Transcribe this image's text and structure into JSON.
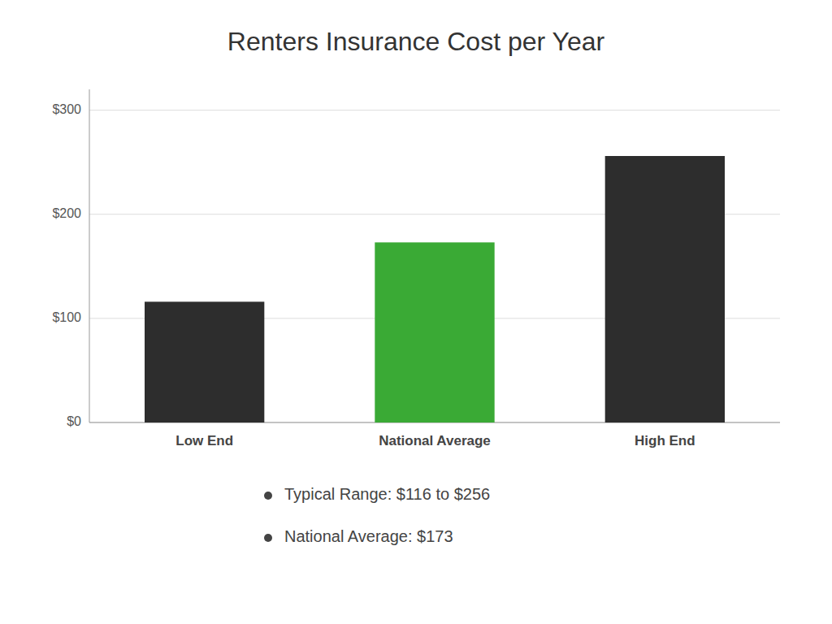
{
  "chart_data": {
    "type": "bar",
    "title": "Renters Insurance Cost per Year",
    "categories": [
      "Low End",
      "National Average",
      "High End"
    ],
    "values": [
      116,
      173,
      256
    ],
    "colors": [
      "#2d2d2d",
      "#3aaa35",
      "#2d2d2d"
    ],
    "ylim": [
      0,
      320
    ],
    "yticks": [
      {
        "value": 0,
        "label": "$0"
      },
      {
        "value": 100,
        "label": "$100"
      },
      {
        "value": 200,
        "label": "$200"
      },
      {
        "value": 300,
        "label": "$300"
      }
    ],
    "grid": true,
    "annotations": [
      "Typical Range: $116 to $256",
      "National Average: $173"
    ]
  }
}
